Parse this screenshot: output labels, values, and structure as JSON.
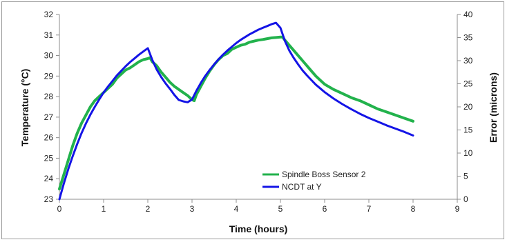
{
  "chart_data": {
    "type": "line",
    "xlabel": "Time (hours)",
    "ylabel": "Temperature (°C)",
    "y2label": "Error (microns)",
    "xlim": [
      0,
      9
    ],
    "ylim": [
      23,
      32
    ],
    "y2lim": [
      0,
      40
    ],
    "xticks": [
      "0",
      "1",
      "2",
      "3",
      "4",
      "5",
      "6",
      "7",
      "8",
      "9"
    ],
    "yticks": [
      "23",
      "24",
      "25",
      "26",
      "27",
      "28",
      "29",
      "30",
      "31",
      "32"
    ],
    "y2ticks": [
      "0",
      "5",
      "10",
      "15",
      "20",
      "25",
      "30",
      "35",
      "40"
    ],
    "grid": false,
    "legend_position": "lower-center",
    "series": [
      {
        "name": "Spindle Boss Sensor 2",
        "axis": "left",
        "color": "#22b24c",
        "x": [
          0,
          0.1,
          0.2,
          0.3,
          0.4,
          0.5,
          0.6,
          0.7,
          0.8,
          0.9,
          1.0,
          1.1,
          1.2,
          1.3,
          1.4,
          1.5,
          1.6,
          1.7,
          1.8,
          1.9,
          2.0,
          2.05,
          2.1,
          2.2,
          2.3,
          2.4,
          2.5,
          2.6,
          2.7,
          2.8,
          2.9,
          3.0,
          3.05,
          3.1,
          3.2,
          3.3,
          3.4,
          3.5,
          3.6,
          3.7,
          3.8,
          3.9,
          4.0,
          4.1,
          4.2,
          4.3,
          4.4,
          4.5,
          4.6,
          4.7,
          4.8,
          4.9,
          5.0,
          5.05,
          5.1,
          5.2,
          5.3,
          5.4,
          5.5,
          5.6,
          5.7,
          5.8,
          5.9,
          6.0,
          6.2,
          6.4,
          6.6,
          6.8,
          7.0,
          7.2,
          7.4,
          7.6,
          7.8,
          8.0
        ],
        "values": [
          23.5,
          24.2,
          24.9,
          25.6,
          26.2,
          26.7,
          27.1,
          27.5,
          27.8,
          28.0,
          28.2,
          28.4,
          28.6,
          28.9,
          29.1,
          29.3,
          29.4,
          29.55,
          29.7,
          29.8,
          29.85,
          29.9,
          29.7,
          29.5,
          29.2,
          28.95,
          28.7,
          28.5,
          28.35,
          28.2,
          28.05,
          27.85,
          27.8,
          28.1,
          28.5,
          28.9,
          29.25,
          29.55,
          29.8,
          30.0,
          30.1,
          30.3,
          30.4,
          30.5,
          30.55,
          30.65,
          30.7,
          30.75,
          30.78,
          30.82,
          30.86,
          30.88,
          30.9,
          30.9,
          30.75,
          30.5,
          30.25,
          30.0,
          29.75,
          29.5,
          29.25,
          29.0,
          28.8,
          28.6,
          28.35,
          28.15,
          27.95,
          27.8,
          27.6,
          27.4,
          27.25,
          27.1,
          26.95,
          26.8
        ]
      },
      {
        "name": "NCDT at Y",
        "axis": "right",
        "color": "#1414e6",
        "x": [
          0,
          0.1,
          0.2,
          0.3,
          0.4,
          0.5,
          0.6,
          0.7,
          0.8,
          0.9,
          1.0,
          1.1,
          1.2,
          1.3,
          1.4,
          1.5,
          1.6,
          1.7,
          1.8,
          1.9,
          2.0,
          2.1,
          2.2,
          2.3,
          2.4,
          2.5,
          2.6,
          2.7,
          2.8,
          2.9,
          3.0,
          3.1,
          3.2,
          3.3,
          3.4,
          3.5,
          3.6,
          3.7,
          3.8,
          3.9,
          4.0,
          4.1,
          4.2,
          4.3,
          4.4,
          4.5,
          4.6,
          4.7,
          4.8,
          4.9,
          5.0,
          5.1,
          5.2,
          5.3,
          5.4,
          5.5,
          5.6,
          5.7,
          5.8,
          5.9,
          6.0,
          6.2,
          6.4,
          6.6,
          6.8,
          7.0,
          7.2,
          7.4,
          7.6,
          7.8,
          8.0
        ],
        "values": [
          0,
          3.4,
          6.5,
          9.3,
          11.9,
          14.3,
          16.4,
          18.3,
          20.0,
          21.6,
          23.1,
          24.4,
          25.6,
          26.8,
          27.8,
          28.8,
          29.7,
          30.5,
          31.3,
          32.0,
          32.7,
          30.2,
          28.1,
          26.5,
          25.1,
          23.9,
          22.6,
          21.5,
          21.2,
          21.0,
          21.6,
          23.5,
          25.2,
          26.7,
          28.0,
          29.2,
          30.3,
          31.3,
          32.2,
          33.0,
          33.8,
          34.5,
          35.1,
          35.7,
          36.2,
          36.7,
          37.1,
          37.5,
          37.9,
          38.2,
          37.1,
          34.3,
          32.2,
          30.6,
          29.2,
          27.9,
          26.8,
          25.8,
          24.8,
          24.0,
          23.2,
          21.8,
          20.6,
          19.5,
          18.5,
          17.6,
          16.8,
          16.0,
          15.3,
          14.6,
          13.8
        ]
      }
    ]
  }
}
